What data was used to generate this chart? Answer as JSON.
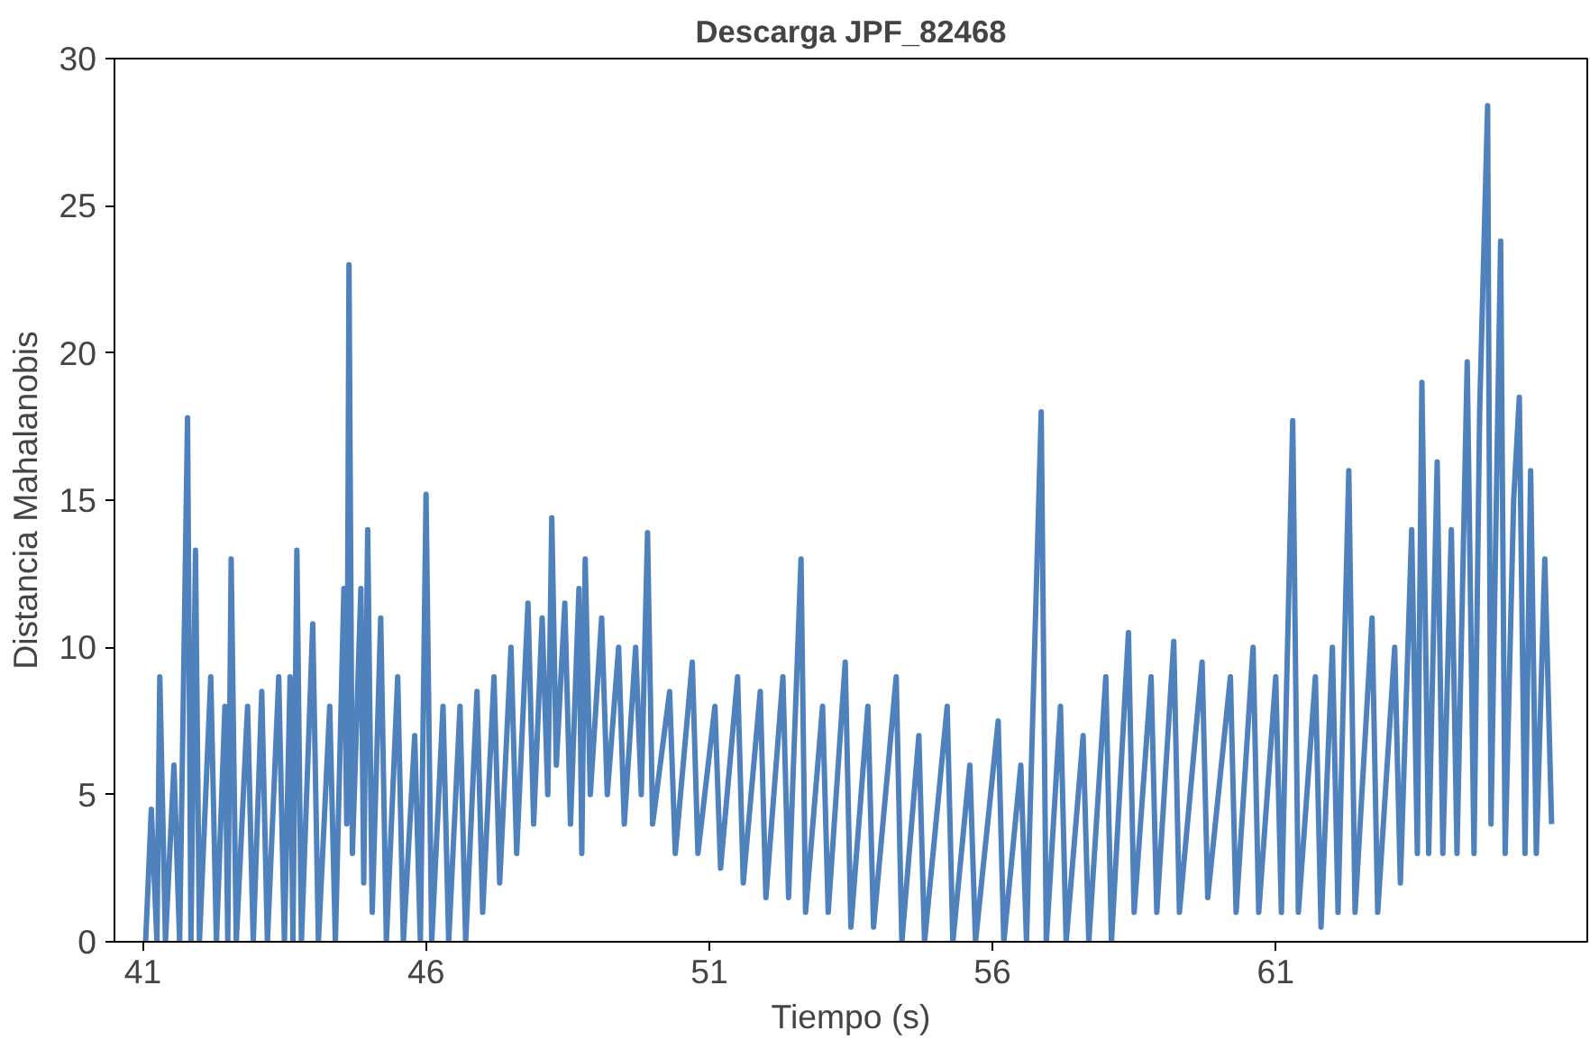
{
  "chart_data": {
    "type": "line",
    "title": "Descarga JPF_82468",
    "xlabel": "Tiempo (s)",
    "ylabel": "Distancia Mahalanobis",
    "xlim": [
      40.5,
      66.5
    ],
    "xticks": [
      41,
      46,
      51,
      56,
      61
    ],
    "ylim": [
      0,
      30
    ],
    "yticks": [
      0,
      5,
      10,
      15,
      20,
      25,
      30
    ],
    "grid": false,
    "marker": "none",
    "line_style": "solid",
    "series": [
      {
        "color": "#4f81bd",
        "x": [
          41.05,
          41.15,
          41.25,
          41.3,
          41.4,
          41.55,
          41.65,
          41.79,
          41.85,
          41.93,
          42.0,
          42.2,
          42.3,
          42.45,
          42.5,
          42.56,
          42.65,
          42.85,
          42.95,
          43.1,
          43.2,
          43.4,
          43.5,
          43.6,
          43.65,
          43.72,
          43.8,
          44.0,
          44.1,
          44.3,
          44.4,
          44.55,
          44.6,
          44.64,
          44.7,
          44.85,
          44.9,
          44.97,
          45.05,
          45.2,
          45.3,
          45.5,
          45.6,
          45.8,
          45.9,
          46.0,
          46.1,
          46.3,
          46.4,
          46.6,
          46.7,
          46.9,
          47.0,
          47.2,
          47.3,
          47.5,
          47.6,
          47.8,
          47.9,
          48.05,
          48.15,
          48.22,
          48.3,
          48.45,
          48.55,
          48.7,
          48.75,
          48.81,
          48.9,
          49.1,
          49.2,
          49.4,
          49.5,
          49.7,
          49.8,
          49.91,
          50.0,
          50.3,
          50.4,
          50.7,
          50.8,
          51.1,
          51.2,
          51.5,
          51.6,
          51.9,
          52.0,
          52.3,
          52.4,
          52.62,
          52.7,
          53.0,
          53.1,
          53.4,
          53.5,
          53.8,
          53.9,
          54.3,
          54.4,
          54.7,
          54.8,
          55.2,
          55.3,
          55.6,
          55.7,
          56.1,
          56.2,
          56.5,
          56.6,
          56.86,
          56.95,
          57.2,
          57.3,
          57.6,
          57.7,
          58.0,
          58.1,
          58.4,
          58.5,
          58.8,
          58.9,
          59.2,
          59.3,
          59.7,
          59.8,
          60.2,
          60.3,
          60.6,
          60.7,
          61.0,
          61.1,
          61.3,
          61.4,
          61.7,
          61.8,
          62.0,
          62.1,
          62.29,
          62.4,
          62.7,
          62.8,
          63.1,
          63.2,
          63.4,
          63.5,
          63.58,
          63.7,
          63.85,
          63.95,
          64.1,
          64.2,
          64.38,
          64.5,
          64.6,
          64.74,
          64.8,
          64.97,
          65.05,
          65.2,
          65.3,
          65.4,
          65.5,
          65.6,
          65.75,
          65.87
        ],
        "values": [
          0,
          4.5,
          0,
          9,
          0,
          6,
          0,
          17.8,
          0,
          13.3,
          0,
          9,
          0,
          8,
          0,
          13,
          0,
          8,
          0,
          8.5,
          0,
          9,
          0,
          9,
          0,
          13.3,
          0,
          10.8,
          0,
          8,
          0,
          12,
          4,
          23,
          3,
          12,
          2,
          14,
          1,
          11,
          0,
          9,
          0,
          7,
          0,
          15.2,
          0,
          8,
          0,
          8,
          0,
          8.5,
          1,
          9,
          2,
          10,
          3,
          11.5,
          4,
          11,
          5,
          14.4,
          6,
          11.5,
          4,
          12,
          3,
          13,
          5,
          11,
          5,
          10,
          4,
          10,
          5,
          13.9,
          4,
          8.5,
          3,
          9.5,
          3,
          8,
          2.5,
          9,
          2,
          8.5,
          1.5,
          9,
          1.5,
          13,
          1,
          8,
          1,
          9.5,
          0.5,
          8,
          0.5,
          9,
          0,
          7,
          0,
          8,
          0,
          6,
          0,
          7.5,
          0,
          6,
          0,
          18,
          0,
          8,
          0,
          7,
          0,
          9,
          0,
          10.5,
          1,
          9,
          1,
          10.2,
          1,
          9.5,
          1.5,
          9,
          1,
          10,
          1,
          9,
          1,
          17.7,
          1,
          9,
          0.5,
          10,
          1,
          16,
          1,
          11,
          1,
          10,
          2,
          14,
          3,
          19,
          3,
          16.3,
          3,
          14,
          3,
          19.7,
          3,
          18,
          28.4,
          4,
          23.8,
          3,
          15,
          18.5,
          3,
          16,
          3,
          13,
          4
        ]
      }
    ]
  }
}
